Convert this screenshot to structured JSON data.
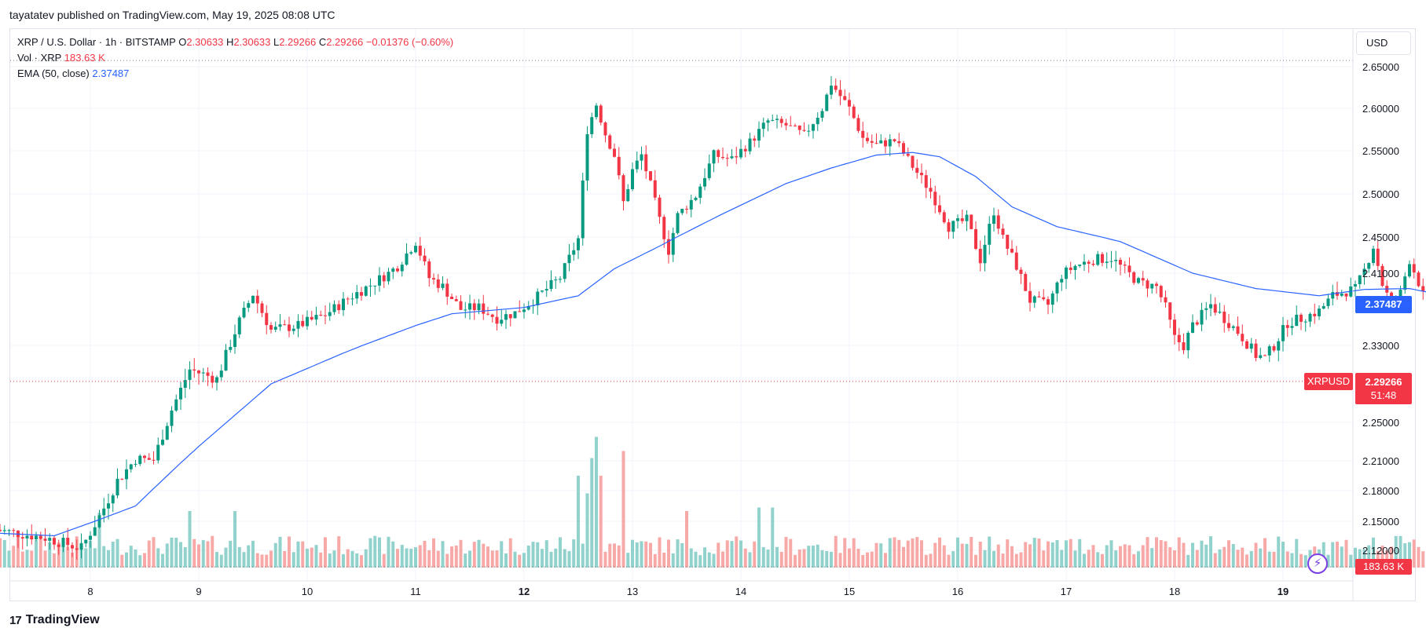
{
  "header": {
    "published_text": "tayatatev published on TradingView.com, May 19, 2025 08:08 UTC"
  },
  "legend": {
    "symbol": "XRP / U.S. Dollar · 1h · BITSTAMP",
    "open_label": "O",
    "open": "2.30633",
    "high_label": "H",
    "high": "2.30633",
    "low_label": "L",
    "low": "2.29266",
    "close_label": "C",
    "close": "2.29266",
    "change": "−0.01376 (−0.60%)",
    "vol_label": "Vol · XRP",
    "vol_value": "183.63 K",
    "ema_label": "EMA (50, close)",
    "ema_value": "2.37487"
  },
  "currency_button": "USD",
  "price_badges": {
    "ema": "2.37487",
    "symbol": "XRPUSD",
    "price": "2.29266",
    "countdown": "51:48",
    "volume": "183.63 K"
  },
  "footer": {
    "brand": "TradingView",
    "brand_mark": "17"
  },
  "colors": {
    "up": "#089981",
    "down": "#f23645",
    "ema": "#2962ff",
    "vol_up": "#92d2cc",
    "vol_down": "#f7a9a7",
    "grid": "#f0f3fa"
  },
  "icons": [
    "tradingview-logo-icon",
    "lightning-icon"
  ],
  "chart_data": {
    "type": "candlestick",
    "timeframe": "1h",
    "y_ticks": [
      "2.65000",
      "2.60000",
      "2.55000",
      "2.50000",
      "2.45000",
      "2.41000",
      "2.33000",
      "2.25000",
      "2.21000",
      "2.18000",
      "2.15000",
      "2.12000"
    ],
    "x_ticks": [
      "8",
      "9",
      "10",
      "11",
      "12",
      "13",
      "14",
      "15",
      "16",
      "17",
      "18",
      "19"
    ],
    "bold_x_ticks": [
      "12",
      "19"
    ],
    "price_anchors": [
      {
        "t": -22,
        "p": 2.142
      },
      {
        "t": -10,
        "p": 2.133
      },
      {
        "t": -2,
        "p": 2.122
      },
      {
        "t": 3,
        "p": 2.163
      },
      {
        "t": 6,
        "p": 2.19
      },
      {
        "t": 10,
        "p": 2.212
      },
      {
        "t": 14,
        "p": 2.211
      },
      {
        "t": 18,
        "p": 2.263
      },
      {
        "t": 22,
        "p": 2.305
      },
      {
        "t": 28,
        "p": 2.295
      },
      {
        "t": 33,
        "p": 2.357
      },
      {
        "t": 36,
        "p": 2.387
      },
      {
        "t": 40,
        "p": 2.347
      },
      {
        "t": 46,
        "p": 2.352
      },
      {
        "t": 52,
        "p": 2.364
      },
      {
        "t": 58,
        "p": 2.385
      },
      {
        "t": 62,
        "p": 2.397
      },
      {
        "t": 66,
        "p": 2.41
      },
      {
        "t": 68,
        "p": 2.418
      },
      {
        "t": 72,
        "p": 2.445
      },
      {
        "t": 75,
        "p": 2.405
      },
      {
        "t": 78,
        "p": 2.395
      },
      {
        "t": 82,
        "p": 2.37
      },
      {
        "t": 86,
        "p": 2.372
      },
      {
        "t": 90,
        "p": 2.36
      },
      {
        "t": 94,
        "p": 2.366
      },
      {
        "t": 98,
        "p": 2.38
      },
      {
        "t": 104,
        "p": 2.405
      },
      {
        "t": 108,
        "p": 2.448
      },
      {
        "t": 110,
        "p": 2.575
      },
      {
        "t": 112,
        "p": 2.605
      },
      {
        "t": 114,
        "p": 2.57
      },
      {
        "t": 116,
        "p": 2.545
      },
      {
        "t": 118,
        "p": 2.49
      },
      {
        "t": 120,
        "p": 2.527
      },
      {
        "t": 122,
        "p": 2.545
      },
      {
        "t": 124,
        "p": 2.51
      },
      {
        "t": 126,
        "p": 2.47
      },
      {
        "t": 128,
        "p": 2.435
      },
      {
        "t": 130,
        "p": 2.475
      },
      {
        "t": 134,
        "p": 2.498
      },
      {
        "t": 138,
        "p": 2.545
      },
      {
        "t": 142,
        "p": 2.54
      },
      {
        "t": 146,
        "p": 2.56
      },
      {
        "t": 150,
        "p": 2.585
      },
      {
        "t": 154,
        "p": 2.58
      },
      {
        "t": 158,
        "p": 2.568
      },
      {
        "t": 162,
        "p": 2.6
      },
      {
        "t": 164,
        "p": 2.63
      },
      {
        "t": 166,
        "p": 2.615
      },
      {
        "t": 168,
        "p": 2.6
      },
      {
        "t": 171,
        "p": 2.565
      },
      {
        "t": 174,
        "p": 2.557
      },
      {
        "t": 178,
        "p": 2.562
      },
      {
        "t": 182,
        "p": 2.532
      },
      {
        "t": 186,
        "p": 2.503
      },
      {
        "t": 190,
        "p": 2.462
      },
      {
        "t": 194,
        "p": 2.47
      },
      {
        "t": 197,
        "p": 2.425
      },
      {
        "t": 200,
        "p": 2.48
      },
      {
        "t": 202,
        "p": 2.448
      },
      {
        "t": 205,
        "p": 2.418
      },
      {
        "t": 208,
        "p": 2.38
      },
      {
        "t": 212,
        "p": 2.375
      },
      {
        "t": 215,
        "p": 2.408
      },
      {
        "t": 218,
        "p": 2.418
      },
      {
        "t": 222,
        "p": 2.425
      },
      {
        "t": 226,
        "p": 2.427
      },
      {
        "t": 229,
        "p": 2.413
      },
      {
        "t": 232,
        "p": 2.4
      },
      {
        "t": 236,
        "p": 2.395
      },
      {
        "t": 238,
        "p": 2.372
      },
      {
        "t": 240,
        "p": 2.338
      },
      {
        "t": 242,
        "p": 2.33
      },
      {
        "t": 244,
        "p": 2.352
      },
      {
        "t": 248,
        "p": 2.375
      },
      {
        "t": 251,
        "p": 2.36
      },
      {
        "t": 254,
        "p": 2.345
      },
      {
        "t": 258,
        "p": 2.32
      },
      {
        "t": 260,
        "p": 2.317
      },
      {
        "t": 262,
        "p": 2.33
      },
      {
        "t": 265,
        "p": 2.355
      },
      {
        "t": 268,
        "p": 2.36
      },
      {
        "t": 272,
        "p": 2.368
      },
      {
        "t": 275,
        "p": 2.385
      },
      {
        "t": 278,
        "p": 2.39
      },
      {
        "t": 280,
        "p": 2.392
      },
      {
        "t": 282,
        "p": 2.413
      },
      {
        "t": 284,
        "p": 2.44
      },
      {
        "t": 286,
        "p": 2.398
      },
      {
        "t": 288,
        "p": 2.375
      },
      {
        "t": 290,
        "p": 2.388
      },
      {
        "t": 292,
        "p": 2.425
      },
      {
        "t": 294,
        "p": 2.4
      },
      {
        "t": 296,
        "p": 2.37
      },
      {
        "t": 298,
        "p": 2.34
      },
      {
        "t": 300,
        "p": 2.318
      },
      {
        "t": 303,
        "p": 2.293
      }
    ],
    "ema_anchors": [
      {
        "t": -22,
        "p": 2.138
      },
      {
        "t": -8,
        "p": 2.135
      },
      {
        "t": 10,
        "p": 2.165
      },
      {
        "t": 24,
        "p": 2.225
      },
      {
        "t": 40,
        "p": 2.29
      },
      {
        "t": 56,
        "p": 2.322
      },
      {
        "t": 72,
        "p": 2.352
      },
      {
        "t": 80,
        "p": 2.365
      },
      {
        "t": 96,
        "p": 2.372
      },
      {
        "t": 108,
        "p": 2.385
      },
      {
        "t": 116,
        "p": 2.415
      },
      {
        "t": 126,
        "p": 2.44
      },
      {
        "t": 140,
        "p": 2.477
      },
      {
        "t": 154,
        "p": 2.512
      },
      {
        "t": 164,
        "p": 2.53
      },
      {
        "t": 174,
        "p": 2.545
      },
      {
        "t": 182,
        "p": 2.548
      },
      {
        "t": 188,
        "p": 2.543
      },
      {
        "t": 196,
        "p": 2.52
      },
      {
        "t": 204,
        "p": 2.485
      },
      {
        "t": 214,
        "p": 2.462
      },
      {
        "t": 228,
        "p": 2.445
      },
      {
        "t": 244,
        "p": 2.41
      },
      {
        "t": 258,
        "p": 2.393
      },
      {
        "t": 272,
        "p": 2.385
      },
      {
        "t": 282,
        "p": 2.392
      },
      {
        "t": 292,
        "p": 2.393
      },
      {
        "t": 298,
        "p": 2.387
      },
      {
        "t": 303,
        "p": 2.375
      }
    ],
    "volume_spikes": [
      {
        "t": 108,
        "v": 2.6
      },
      {
        "t": 111,
        "v": 3.1
      },
      {
        "t": 112,
        "v": 3.7
      },
      {
        "t": 113,
        "v": 2.6
      },
      {
        "t": 118,
        "v": 3.3
      },
      {
        "t": 110,
        "v": 2.1
      },
      {
        "t": 32,
        "v": 1.6
      },
      {
        "t": 22,
        "v": 1.6
      },
      {
        "t": 132,
        "v": 1.6
      },
      {
        "t": 148,
        "v": 1.7
      },
      {
        "t": 151,
        "v": 1.7
      },
      {
        "t": 2,
        "v": 1.55
      }
    ],
    "current_price": 2.29266,
    "current_ema": 2.37487,
    "current_volume": "183.63 K"
  }
}
